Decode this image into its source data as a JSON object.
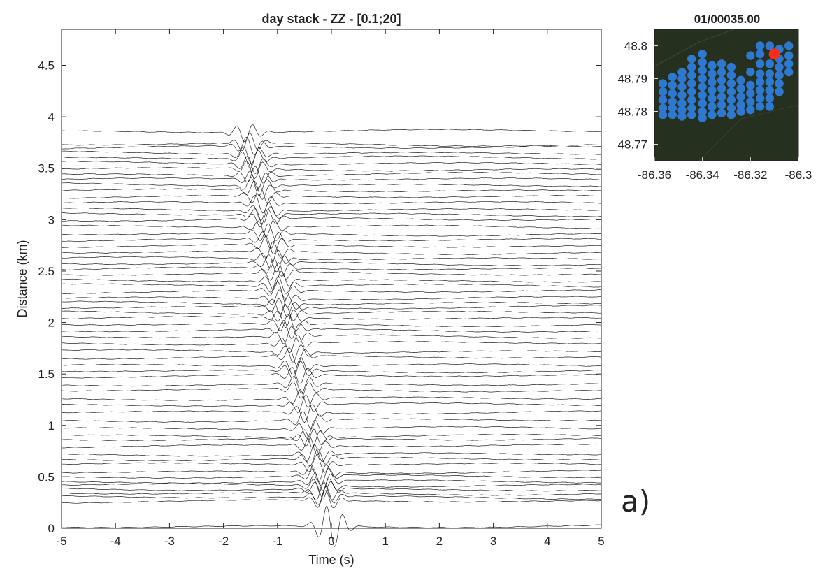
{
  "chart_data": [
    {
      "type": "line",
      "title": "day  stack  - ZZ - [0.1;20]",
      "xlabel": "Time (s)",
      "ylabel": "Distance (km)",
      "xlim": [
        -5,
        5
      ],
      "ylim": [
        0,
        4.85
      ],
      "xticks": [
        "-5",
        "-4",
        "-3",
        "-2",
        "-1",
        "0",
        "1",
        "2",
        "3",
        "4",
        "5"
      ],
      "yticks": [
        "0",
        "0.5",
        "1",
        "1.5",
        "2",
        "2.5",
        "3",
        "3.5",
        "4",
        "4.5"
      ],
      "grid": false,
      "legend": "none",
      "color": "#000000",
      "trace_offsets_km": [
        0.02,
        0.26,
        0.3,
        0.34,
        0.38,
        0.42,
        0.45,
        0.5,
        0.55,
        0.62,
        0.67,
        0.72,
        0.8,
        0.87,
        0.9,
        0.97,
        1.05,
        1.13,
        1.2,
        1.26,
        1.34,
        1.4,
        1.48,
        1.53,
        1.58,
        1.66,
        1.72,
        1.8,
        1.86,
        1.92,
        1.98,
        2.04,
        2.1,
        2.15,
        2.19,
        2.24,
        2.3,
        2.36,
        2.41,
        2.47,
        2.52,
        2.57,
        2.62,
        2.68,
        2.74,
        2.8,
        2.86,
        2.93,
        3.0,
        3.05,
        3.1,
        3.16,
        3.22,
        3.28,
        3.34,
        3.39,
        3.44,
        3.49,
        3.55,
        3.6,
        3.65,
        3.7,
        3.73,
        3.86
      ],
      "moveout": {
        "t_at_0km": 0.0,
        "t_at_3.8km": -1.55
      }
    },
    {
      "type": "scatter",
      "title": "01/00035.00",
      "xlim": [
        -86.36,
        -86.3
      ],
      "ylim": [
        48.765,
        48.805
      ],
      "xticks": [
        "-86.36",
        "-86.34",
        "-86.32",
        "-86.3"
      ],
      "yticks": [
        "48.77",
        "48.78",
        "48.79",
        "48.8"
      ],
      "background": "#25301f",
      "series": [
        {
          "color": "#2f78cf",
          "points": [
            [
              -86.3565,
              48.7885
            ],
            [
              -86.3565,
              48.786
            ],
            [
              -86.3565,
              48.7835
            ],
            [
              -86.3565,
              48.781
            ],
            [
              -86.3565,
              48.779
            ],
            [
              -86.3525,
              48.7905
            ],
            [
              -86.3525,
              48.788
            ],
            [
              -86.3525,
              48.7855
            ],
            [
              -86.3525,
              48.783
            ],
            [
              -86.3525,
              48.781
            ],
            [
              -86.3525,
              48.779
            ],
            [
              -86.3485,
              48.792
            ],
            [
              -86.3485,
              48.79
            ],
            [
              -86.3485,
              48.7875
            ],
            [
              -86.3485,
              48.785
            ],
            [
              -86.3485,
              48.7825
            ],
            [
              -86.3485,
              48.7805
            ],
            [
              -86.3485,
              48.7785
            ],
            [
              -86.3445,
              48.796
            ],
            [
              -86.3445,
              48.7935
            ],
            [
              -86.3445,
              48.791
            ],
            [
              -86.3445,
              48.7885
            ],
            [
              -86.3445,
              48.786
            ],
            [
              -86.3445,
              48.7835
            ],
            [
              -86.3445,
              48.781
            ],
            [
              -86.3445,
              48.779
            ],
            [
              -86.34,
              48.7975
            ],
            [
              -86.34,
              48.795
            ],
            [
              -86.34,
              48.7925
            ],
            [
              -86.34,
              48.79
            ],
            [
              -86.34,
              48.7875
            ],
            [
              -86.34,
              48.785
            ],
            [
              -86.34,
              48.7825
            ],
            [
              -86.34,
              48.78
            ],
            [
              -86.34,
              48.778
            ],
            [
              -86.336,
              48.794
            ],
            [
              -86.336,
              48.7915
            ],
            [
              -86.336,
              48.789
            ],
            [
              -86.336,
              48.7865
            ],
            [
              -86.336,
              48.784
            ],
            [
              -86.336,
              48.7815
            ],
            [
              -86.336,
              48.779
            ],
            [
              -86.332,
              48.7945
            ],
            [
              -86.332,
              48.792
            ],
            [
              -86.332,
              48.7895
            ],
            [
              -86.332,
              48.787
            ],
            [
              -86.332,
              48.7845
            ],
            [
              -86.332,
              48.782
            ],
            [
              -86.332,
              48.7795
            ],
            [
              -86.328,
              48.7935
            ],
            [
              -86.328,
              48.791
            ],
            [
              -86.328,
              48.7885
            ],
            [
              -86.328,
              48.786
            ],
            [
              -86.328,
              48.7835
            ],
            [
              -86.328,
              48.781
            ],
            [
              -86.328,
              48.779
            ],
            [
              -86.324,
              48.7895
            ],
            [
              -86.324,
              48.787
            ],
            [
              -86.324,
              48.7845
            ],
            [
              -86.324,
              48.782
            ],
            [
              -86.324,
              48.78
            ],
            [
              -86.32,
              48.797
            ],
            [
              -86.32,
              48.792
            ],
            [
              -86.32,
              48.788
            ],
            [
              -86.32,
              48.7855
            ],
            [
              -86.32,
              48.783
            ],
            [
              -86.32,
              48.7805
            ],
            [
              -86.316,
              48.8
            ],
            [
              -86.316,
              48.7975
            ],
            [
              -86.316,
              48.7945
            ],
            [
              -86.316,
              48.7915
            ],
            [
              -86.316,
              48.789
            ],
            [
              -86.316,
              48.7865
            ],
            [
              -86.316,
              48.784
            ],
            [
              -86.316,
              48.7815
            ],
            [
              -86.312,
              48.8
            ],
            [
              -86.312,
              48.7945
            ],
            [
              -86.312,
              48.7915
            ],
            [
              -86.312,
              48.789
            ],
            [
              -86.312,
              48.7865
            ],
            [
              -86.312,
              48.784
            ],
            [
              -86.312,
              48.7815
            ],
            [
              -86.308,
              48.799
            ],
            [
              -86.308,
              48.796
            ],
            [
              -86.308,
              48.7935
            ],
            [
              -86.308,
              48.791
            ],
            [
              -86.308,
              48.7885
            ],
            [
              -86.308,
              48.786
            ],
            [
              -86.304,
              48.8
            ],
            [
              -86.304,
              48.797
            ],
            [
              -86.304,
              48.7945
            ],
            [
              -86.304,
              48.792
            ]
          ]
        },
        {
          "color": "#ff2b1c",
          "points": [
            [
              -86.31,
              48.7975
            ]
          ]
        }
      ]
    }
  ],
  "panel_label": "a)",
  "colors": {
    "panel_label": "#3d5f96",
    "axis": "#222222"
  }
}
